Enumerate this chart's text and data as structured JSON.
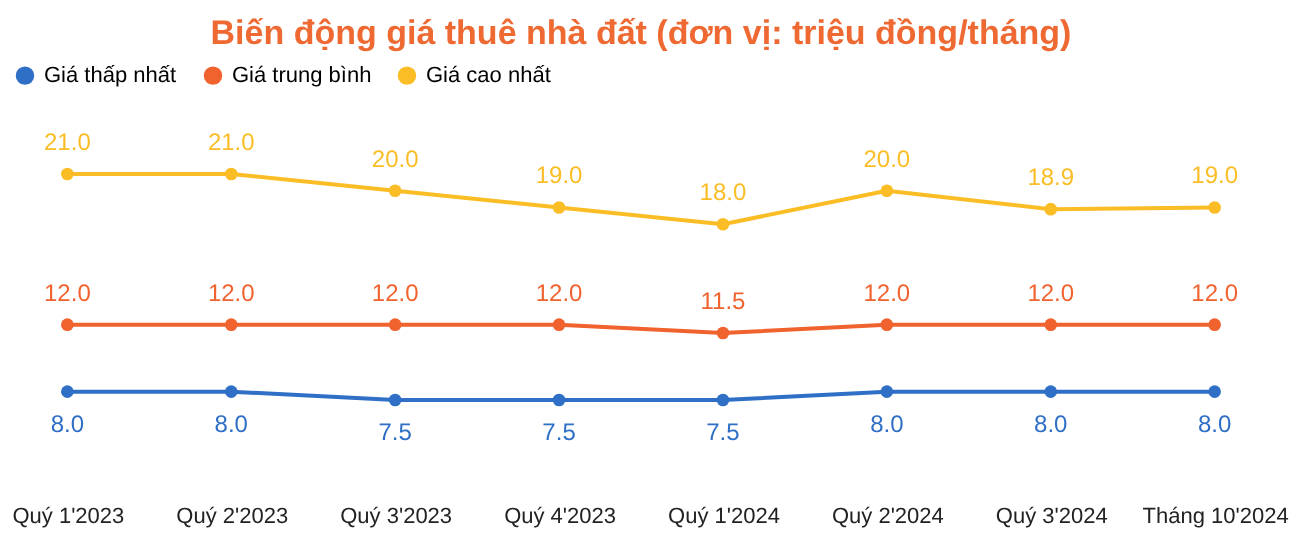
{
  "chart_data": {
    "type": "line",
    "title": "Biến động giá thuê nhà đất (đơn vị: triệu đồng/tháng)",
    "categories": [
      "Quý 1'2023",
      "Quý 2'2023",
      "Quý 3'2023",
      "Quý 4'2023",
      "Quý 1'2024",
      "Quý 2'2024",
      "Quý 3'2024",
      "Tháng 10'2024"
    ],
    "series": [
      {
        "name": "Giá thấp nhất",
        "color": "#2f6fc6",
        "values": [
          8.0,
          8.0,
          7.5,
          7.5,
          7.5,
          8.0,
          8.0,
          8.0
        ],
        "value_labels": [
          "8.0",
          "8.0",
          "7.5",
          "7.5",
          "7.5",
          "8.0",
          "8.0",
          "8.0"
        ]
      },
      {
        "name": "Giá trung bình",
        "color": "#f0622e",
        "values": [
          12.0,
          12.0,
          12.0,
          12.0,
          11.5,
          12.0,
          12.0,
          12.0
        ],
        "value_labels": [
          "12.0",
          "12.0",
          "12.0",
          "12.0",
          "11.5",
          "12.0",
          "12.0",
          "12.0"
        ]
      },
      {
        "name": "Giá cao nhất",
        "color": "#fbbd26",
        "values": [
          21.0,
          21.0,
          20.0,
          19.0,
          18.0,
          20.0,
          18.9,
          19.0
        ],
        "value_labels": [
          "21.0",
          "21.0",
          "20.0",
          "19.0",
          "18.0",
          "20.0",
          "18.9",
          "19.0"
        ]
      }
    ],
    "marker": "circle",
    "line_style": "solid",
    "grid": false,
    "legend": "top",
    "tick_labels": "x"
  }
}
